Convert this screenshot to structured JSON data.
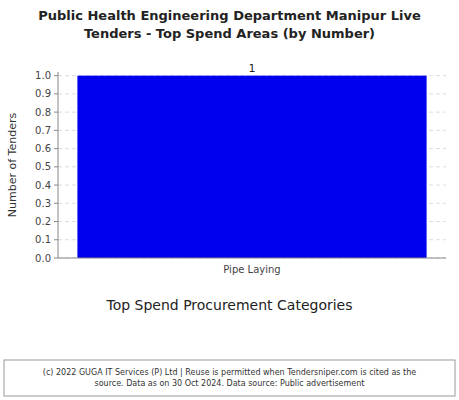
{
  "chart_data": {
    "type": "bar",
    "title": "Public Health Engineering Department Manipur Live\nTenders - Top Spend Areas (by Number)",
    "categories": [
      "Pipe Laying"
    ],
    "values": [
      1
    ],
    "color": "#0000EE",
    "xlabel": "Top Spend Procurement Categories",
    "ylabel": "Number of Tenders",
    "ylim": [
      0,
      1.02
    ],
    "yticks": [
      {
        "value": 0,
        "label": "0.0"
      },
      0.1,
      0.2,
      0.3,
      0.4,
      0.5,
      0.6,
      0.7,
      0.8,
      0.9,
      {
        "value": 1,
        "label": "1.0"
      }
    ],
    "grid": true,
    "data_labels": true,
    "annotations": [
      "(c) 2022 GUGA IT Services (P) Ltd | Reuse is permitted when Tendersniper.com is cited as the\nsource. Data as on 30 Oct 2024. Data source: Public advertisement"
    ]
  }
}
